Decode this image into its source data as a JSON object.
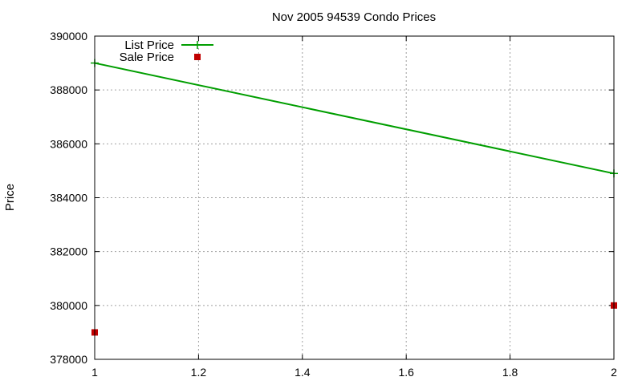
{
  "chart_data": {
    "type": "line",
    "title": "Nov 2005 94539 Condo Prices",
    "xlabel": "",
    "ylabel": "Price",
    "xlim": [
      1,
      2
    ],
    "ylim": [
      378000,
      390000
    ],
    "x_ticks": [
      1,
      1.2,
      1.4,
      1.6,
      1.8,
      2
    ],
    "x_tick_labels": [
      "1",
      "1.2",
      "1.4",
      "1.6",
      "1.8",
      "2"
    ],
    "y_ticks": [
      378000,
      380000,
      382000,
      384000,
      386000,
      388000,
      390000
    ],
    "y_tick_labels": [
      "378000",
      "380000",
      "382000",
      "384000",
      "386000",
      "388000",
      "390000"
    ],
    "grid": true,
    "legend_position": "top-left",
    "series": [
      {
        "name": "List Price",
        "style": "linespoints",
        "marker": "plus",
        "color": "#009e00",
        "x": [
          1,
          2
        ],
        "y": [
          389000,
          384900
        ]
      },
      {
        "name": "Sale Price",
        "style": "points",
        "marker": "square",
        "color": "#c00000",
        "x": [
          1,
          2
        ],
        "y": [
          379000,
          380000
        ]
      }
    ]
  }
}
